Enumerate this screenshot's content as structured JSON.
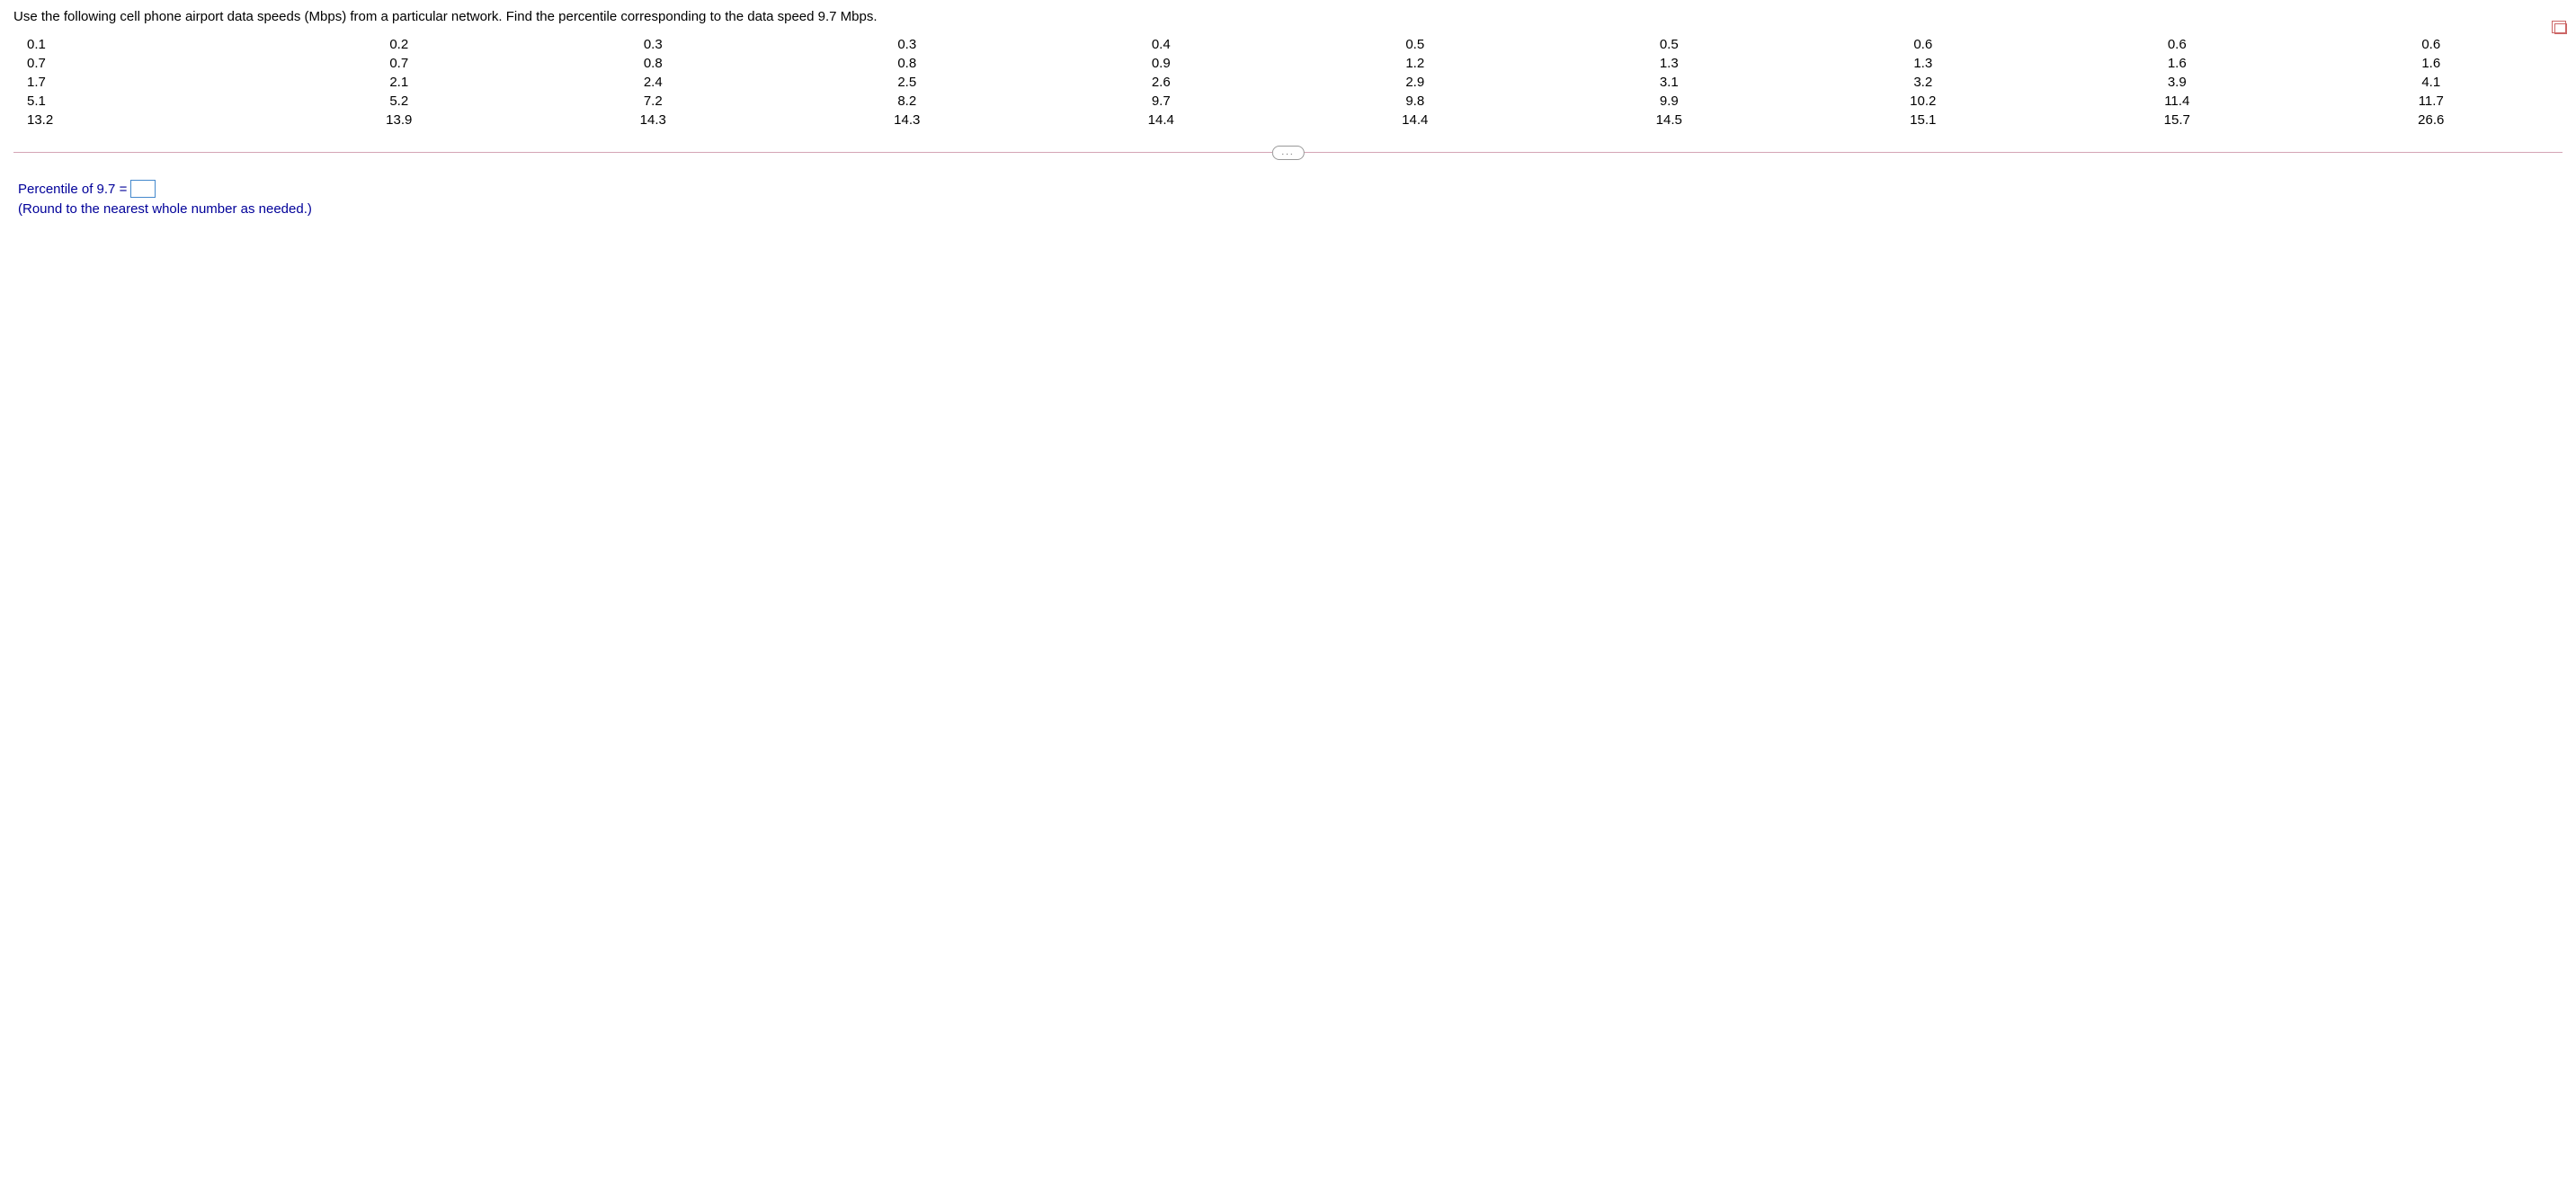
{
  "question": {
    "prompt": "Use the following cell phone airport data speeds (Mbps) from a particular network. Find the percentile corresponding to the data speed 9.7 Mbps."
  },
  "data": {
    "values": [
      "0.1",
      "0.2",
      "0.3",
      "0.3",
      "0.4",
      "0.5",
      "0.5",
      "0.6",
      "0.6",
      "0.6",
      "0.7",
      "0.7",
      "0.8",
      "0.8",
      "0.9",
      "1.2",
      "1.3",
      "1.3",
      "1.6",
      "1.6",
      "1.7",
      "2.1",
      "2.4",
      "2.5",
      "2.6",
      "2.9",
      "3.1",
      "3.2",
      "3.9",
      "4.1",
      "5.1",
      "5.2",
      "7.2",
      "8.2",
      "9.7",
      "9.8",
      "9.9",
      "10.2",
      "11.4",
      "11.7",
      "13.2",
      "13.9",
      "14.3",
      "14.3",
      "14.4",
      "14.4",
      "14.5",
      "15.1",
      "15.7",
      "26.6"
    ]
  },
  "separator": {
    "label": "..."
  },
  "answer": {
    "label_prefix": "Percentile of 9.7 =",
    "input_value": "",
    "hint": "(Round to the nearest whole number as needed.)"
  },
  "colors": {
    "text_primary": "#000000",
    "text_answer": "#000099",
    "separator_line": "#d4a5b5",
    "input_border": "#4488cc",
    "background": "#ffffff"
  }
}
